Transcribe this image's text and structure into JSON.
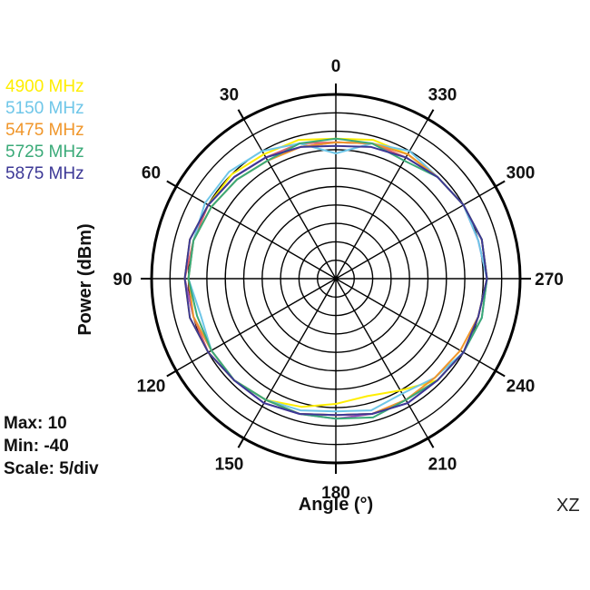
{
  "chart_data": {
    "type": "polar",
    "plane": "XZ",
    "xlabel": "Angle  (°)",
    "ylabel": "Power  (dBm)",
    "rlim": [
      -40,
      10
    ],
    "scale_label": "Scale: 5/div",
    "max_label": "Max: 10",
    "min_label": "Min: -40",
    "angle_ticks": [
      "0",
      "30",
      "60",
      "90",
      "120",
      "150",
      "180",
      "210",
      "240",
      "270",
      "300",
      "330"
    ],
    "grid": true,
    "angle_direction": "counterclockwise from top",
    "legend_position": "top-left",
    "angles": [
      0,
      15,
      30,
      45,
      60,
      75,
      90,
      105,
      120,
      135,
      150,
      165,
      180,
      195,
      210,
      225,
      240,
      255,
      270,
      285,
      300,
      315,
      330,
      345
    ],
    "series": [
      {
        "name": "4900 MHz",
        "color": "#ffee00",
        "values": [
          -2,
          -1,
          -1,
          0,
          0,
          1,
          1,
          1,
          0,
          -1,
          -2,
          -4,
          -6,
          -7,
          -5,
          -1,
          0,
          0,
          1,
          1,
          0,
          -1,
          -1,
          -1
        ]
      },
      {
        "name": "5150 MHz",
        "color": "#6ec6e8",
        "values": [
          -6,
          -2,
          0,
          1,
          1,
          0,
          0,
          -2,
          -1,
          -1,
          -2,
          -3,
          -4,
          -3,
          -4,
          -2,
          0,
          1,
          1,
          0,
          0,
          -1,
          0,
          -2
        ]
      },
      {
        "name": "5475 MHz",
        "color": "#f0962a",
        "values": [
          -3,
          -3,
          -3,
          -2,
          -1,
          0,
          0,
          0,
          -1,
          -1,
          -2,
          -2,
          -3,
          -2,
          -2,
          -2,
          -1,
          0,
          1,
          1,
          0,
          -1,
          -1,
          -2
        ]
      },
      {
        "name": "5725 MHz",
        "color": "#3aaa78",
        "values": [
          -2,
          -2,
          -3,
          -2,
          -1,
          0,
          0,
          -1,
          -1,
          -1,
          -2,
          -2,
          -2,
          -1,
          -2,
          -1,
          0,
          1,
          1,
          1,
          0,
          -1,
          -3,
          -2
        ]
      },
      {
        "name": "5875 MHz",
        "color": "#3c3896",
        "values": [
          -4,
          -3,
          -2,
          -1,
          0,
          1,
          1,
          1,
          0,
          -1,
          -1,
          -2,
          -3,
          -2,
          -1,
          -1,
          0,
          0,
          1,
          1,
          0,
          -1,
          -2,
          -3
        ]
      }
    ],
    "extra_series_colors": [
      "#e06070",
      "#a050c0"
    ],
    "extra_series_values": [
      [
        -3,
        -2,
        -2,
        -1,
        0,
        0,
        1,
        0,
        0,
        -1,
        -2,
        -2,
        -3,
        -2,
        -2,
        -1,
        0,
        1,
        1,
        1,
        0,
        -1,
        -2,
        -2
      ],
      [
        -3,
        -3,
        -2,
        -1,
        0,
        1,
        1,
        0,
        -1,
        -1,
        -1,
        -2,
        -2,
        -2,
        -1,
        -1,
        0,
        0,
        1,
        0,
        0,
        -1,
        -1,
        -2
      ]
    ]
  }
}
